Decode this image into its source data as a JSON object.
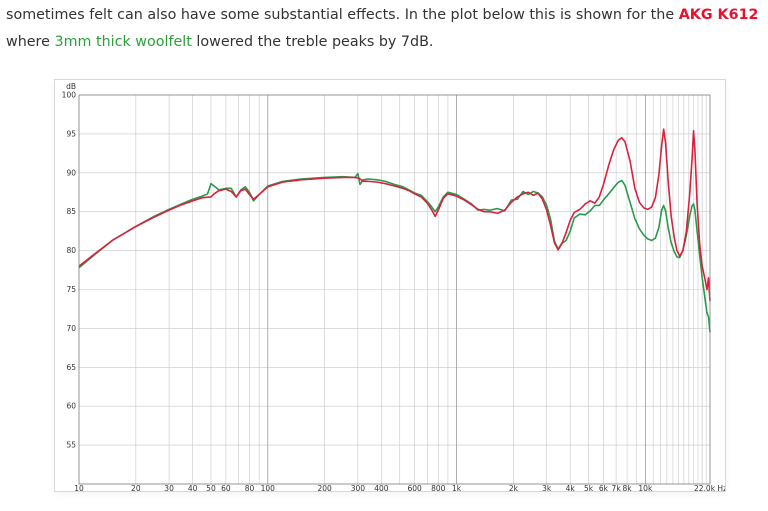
{
  "text": {
    "line1": "sometimes felt can also have some substantial effects. In the plot below this is shown for the ",
    "line1_highlight": "AKG K612",
    "line2_highlight": "3mm thick woolfelt",
    "line2_pre": "where ",
    "line2_post": " lowered the treble peaks by 7dB."
  },
  "colors": {
    "highlight_red": "#e8112d",
    "highlight_green": "#2e9e3a",
    "series_red": "#d9213e",
    "series_green": "#2a9a4b",
    "grid": "#c8c8c8"
  },
  "chart_data": {
    "type": "line",
    "x_scale": "log",
    "xlim": [
      10,
      22000
    ],
    "ylim": [
      50,
      100
    ],
    "ylabel": "dB",
    "xlabel": "Hz",
    "y_ticks": [
      "100",
      "95",
      "90",
      "85",
      "80",
      "75",
      "70",
      "65",
      "60",
      "55"
    ],
    "x_ticks": [
      {
        "v": 10,
        "label": "10"
      },
      {
        "v": 20,
        "label": "20"
      },
      {
        "v": 30,
        "label": "30"
      },
      {
        "v": 40,
        "label": "40"
      },
      {
        "v": 50,
        "label": "50"
      },
      {
        "v": 60,
        "label": "60"
      },
      {
        "v": 80,
        "label": "80"
      },
      {
        "v": 100,
        "label": "100"
      },
      {
        "v": 200,
        "label": "200"
      },
      {
        "v": 300,
        "label": "300"
      },
      {
        "v": 400,
        "label": "400"
      },
      {
        "v": 600,
        "label": "600"
      },
      {
        "v": 800,
        "label": "800"
      },
      {
        "v": 1000,
        "label": "1k"
      },
      {
        "v": 2000,
        "label": "2k"
      },
      {
        "v": 3000,
        "label": "3k"
      },
      {
        "v": 4000,
        "label": "4k"
      },
      {
        "v": 5000,
        "label": "5k"
      },
      {
        "v": 6000,
        "label": "6k"
      },
      {
        "v": 7000,
        "label": "7k"
      },
      {
        "v": 8000,
        "label": "8k"
      },
      {
        "v": 10000,
        "label": "10k"
      },
      {
        "v": 22000,
        "label": "22,0k Hz"
      }
    ],
    "grid": true,
    "series": [
      {
        "color": "#d9213e",
        "points": [
          [
            10,
            78
          ],
          [
            12,
            79.5
          ],
          [
            15,
            81.3
          ],
          [
            20,
            83.1
          ],
          [
            25,
            84.3
          ],
          [
            30,
            85.2
          ],
          [
            35,
            85.9
          ],
          [
            40,
            86.4
          ],
          [
            45,
            86.8
          ],
          [
            50,
            86.9
          ],
          [
            52,
            87.3
          ],
          [
            55,
            87.7
          ],
          [
            60,
            87.9
          ],
          [
            64,
            87.6
          ],
          [
            68,
            86.9
          ],
          [
            72,
            87.7
          ],
          [
            76,
            87.9
          ],
          [
            80,
            87.2
          ],
          [
            84,
            86.6
          ],
          [
            90,
            87.2
          ],
          [
            100,
            88.2
          ],
          [
            120,
            88.8
          ],
          [
            150,
            89.1
          ],
          [
            200,
            89.3
          ],
          [
            250,
            89.4
          ],
          [
            290,
            89.4
          ],
          [
            305,
            89.3
          ],
          [
            320,
            88.9
          ],
          [
            340,
            88.9
          ],
          [
            380,
            88.8
          ],
          [
            420,
            88.6
          ],
          [
            470,
            88.3
          ],
          [
            520,
            88.0
          ],
          [
            560,
            87.7
          ],
          [
            600,
            87.3
          ],
          [
            650,
            86.9
          ],
          [
            700,
            86.1
          ],
          [
            740,
            85.2
          ],
          [
            770,
            84.4
          ],
          [
            800,
            85.2
          ],
          [
            850,
            86.7
          ],
          [
            900,
            87.3
          ],
          [
            1000,
            87.0
          ],
          [
            1100,
            86.5
          ],
          [
            1200,
            85.9
          ],
          [
            1300,
            85.3
          ],
          [
            1400,
            85.0
          ],
          [
            1500,
            85.0
          ],
          [
            1650,
            84.8
          ],
          [
            1800,
            85.2
          ],
          [
            1950,
            86.2
          ],
          [
            2100,
            86.9
          ],
          [
            2250,
            87.3
          ],
          [
            2400,
            87.5
          ],
          [
            2550,
            87.1
          ],
          [
            2700,
            87.4
          ],
          [
            2850,
            86.6
          ],
          [
            3000,
            85.2
          ],
          [
            3150,
            83.2
          ],
          [
            3300,
            81.0
          ],
          [
            3450,
            80.1
          ],
          [
            3600,
            80.8
          ],
          [
            3800,
            82.3
          ],
          [
            4000,
            83.9
          ],
          [
            4200,
            84.9
          ],
          [
            4500,
            85.3
          ],
          [
            4800,
            86.0
          ],
          [
            5100,
            86.4
          ],
          [
            5400,
            86.1
          ],
          [
            5700,
            86.9
          ],
          [
            6000,
            88.5
          ],
          [
            6400,
            91.0
          ],
          [
            6800,
            93.0
          ],
          [
            7200,
            94.2
          ],
          [
            7500,
            94.5
          ],
          [
            7800,
            94.0
          ],
          [
            8300,
            91.5
          ],
          [
            8800,
            88.0
          ],
          [
            9300,
            86.2
          ],
          [
            9800,
            85.5
          ],
          [
            10300,
            85.3
          ],
          [
            10800,
            85.6
          ],
          [
            11300,
            86.8
          ],
          [
            11800,
            89.8
          ],
          [
            12200,
            93.5
          ],
          [
            12500,
            95.6
          ],
          [
            12800,
            93.8
          ],
          [
            13200,
            89.0
          ],
          [
            13700,
            84.4
          ],
          [
            14200,
            81.8
          ],
          [
            14700,
            80.0
          ],
          [
            15200,
            79.3
          ],
          [
            15800,
            80.0
          ],
          [
            16500,
            82.5
          ],
          [
            17200,
            87.5
          ],
          [
            17700,
            92.0
          ],
          [
            18000,
            95.4
          ],
          [
            18300,
            93.0
          ],
          [
            18800,
            86.0
          ],
          [
            19400,
            80.8
          ],
          [
            20000,
            78.0
          ],
          [
            20700,
            76.3
          ],
          [
            21200,
            75.0
          ],
          [
            21600,
            76.5
          ],
          [
            22000,
            73.5
          ]
        ]
      },
      {
        "color": "#2a9a4b",
        "points": [
          [
            10,
            77.8
          ],
          [
            12,
            79.4
          ],
          [
            15,
            81.3
          ],
          [
            20,
            83.1
          ],
          [
            25,
            84.4
          ],
          [
            30,
            85.3
          ],
          [
            35,
            86.0
          ],
          [
            40,
            86.6
          ],
          [
            45,
            87.0
          ],
          [
            48,
            87.3
          ],
          [
            50,
            88.6
          ],
          [
            52,
            88.3
          ],
          [
            55,
            87.8
          ],
          [
            60,
            88.0
          ],
          [
            64,
            88.0
          ],
          [
            68,
            86.9
          ],
          [
            72,
            87.8
          ],
          [
            76,
            88.2
          ],
          [
            80,
            87.5
          ],
          [
            84,
            86.4
          ],
          [
            90,
            87.2
          ],
          [
            100,
            88.3
          ],
          [
            120,
            88.9
          ],
          [
            150,
            89.2
          ],
          [
            200,
            89.4
          ],
          [
            250,
            89.5
          ],
          [
            290,
            89.4
          ],
          [
            300,
            89.9
          ],
          [
            308,
            88.5
          ],
          [
            320,
            89.1
          ],
          [
            340,
            89.2
          ],
          [
            380,
            89.1
          ],
          [
            420,
            88.9
          ],
          [
            470,
            88.5
          ],
          [
            520,
            88.2
          ],
          [
            560,
            87.8
          ],
          [
            600,
            87.4
          ],
          [
            650,
            87.1
          ],
          [
            700,
            86.3
          ],
          [
            740,
            85.6
          ],
          [
            770,
            85.0
          ],
          [
            800,
            85.6
          ],
          [
            850,
            86.9
          ],
          [
            900,
            87.5
          ],
          [
            1000,
            87.2
          ],
          [
            1100,
            86.6
          ],
          [
            1200,
            86.0
          ],
          [
            1300,
            85.2
          ],
          [
            1400,
            85.3
          ],
          [
            1500,
            85.2
          ],
          [
            1650,
            85.4
          ],
          [
            1800,
            85.1
          ],
          [
            1950,
            86.5
          ],
          [
            2100,
            86.6
          ],
          [
            2250,
            87.6
          ],
          [
            2400,
            87.2
          ],
          [
            2550,
            87.6
          ],
          [
            2700,
            87.4
          ],
          [
            2850,
            86.9
          ],
          [
            3000,
            85.8
          ],
          [
            3150,
            84.0
          ],
          [
            3300,
            81.2
          ],
          [
            3450,
            80.2
          ],
          [
            3600,
            80.9
          ],
          [
            3800,
            81.3
          ],
          [
            4000,
            82.5
          ],
          [
            4200,
            84.2
          ],
          [
            4500,
            84.7
          ],
          [
            4800,
            84.6
          ],
          [
            5100,
            85.1
          ],
          [
            5400,
            85.8
          ],
          [
            5700,
            85.8
          ],
          [
            6000,
            86.5
          ],
          [
            6400,
            87.3
          ],
          [
            6800,
            88.1
          ],
          [
            7200,
            88.8
          ],
          [
            7500,
            89.0
          ],
          [
            7800,
            88.4
          ],
          [
            8300,
            86.2
          ],
          [
            8800,
            84.1
          ],
          [
            9300,
            82.8
          ],
          [
            9800,
            82.0
          ],
          [
            10300,
            81.5
          ],
          [
            10800,
            81.3
          ],
          [
            11300,
            81.6
          ],
          [
            11800,
            83.0
          ],
          [
            12200,
            85.2
          ],
          [
            12500,
            85.8
          ],
          [
            12800,
            85.1
          ],
          [
            13200,
            83.0
          ],
          [
            13700,
            81.0
          ],
          [
            14200,
            79.9
          ],
          [
            14700,
            79.2
          ],
          [
            15200,
            79.1
          ],
          [
            15800,
            80.0
          ],
          [
            16500,
            82.0
          ],
          [
            17200,
            84.5
          ],
          [
            17700,
            85.8
          ],
          [
            18000,
            86.0
          ],
          [
            18300,
            85.2
          ],
          [
            18800,
            82.5
          ],
          [
            19400,
            79.4
          ],
          [
            20000,
            76.5
          ],
          [
            20700,
            73.8
          ],
          [
            21200,
            72.0
          ],
          [
            21600,
            71.5
          ],
          [
            22000,
            69.5
          ]
        ]
      }
    ]
  }
}
